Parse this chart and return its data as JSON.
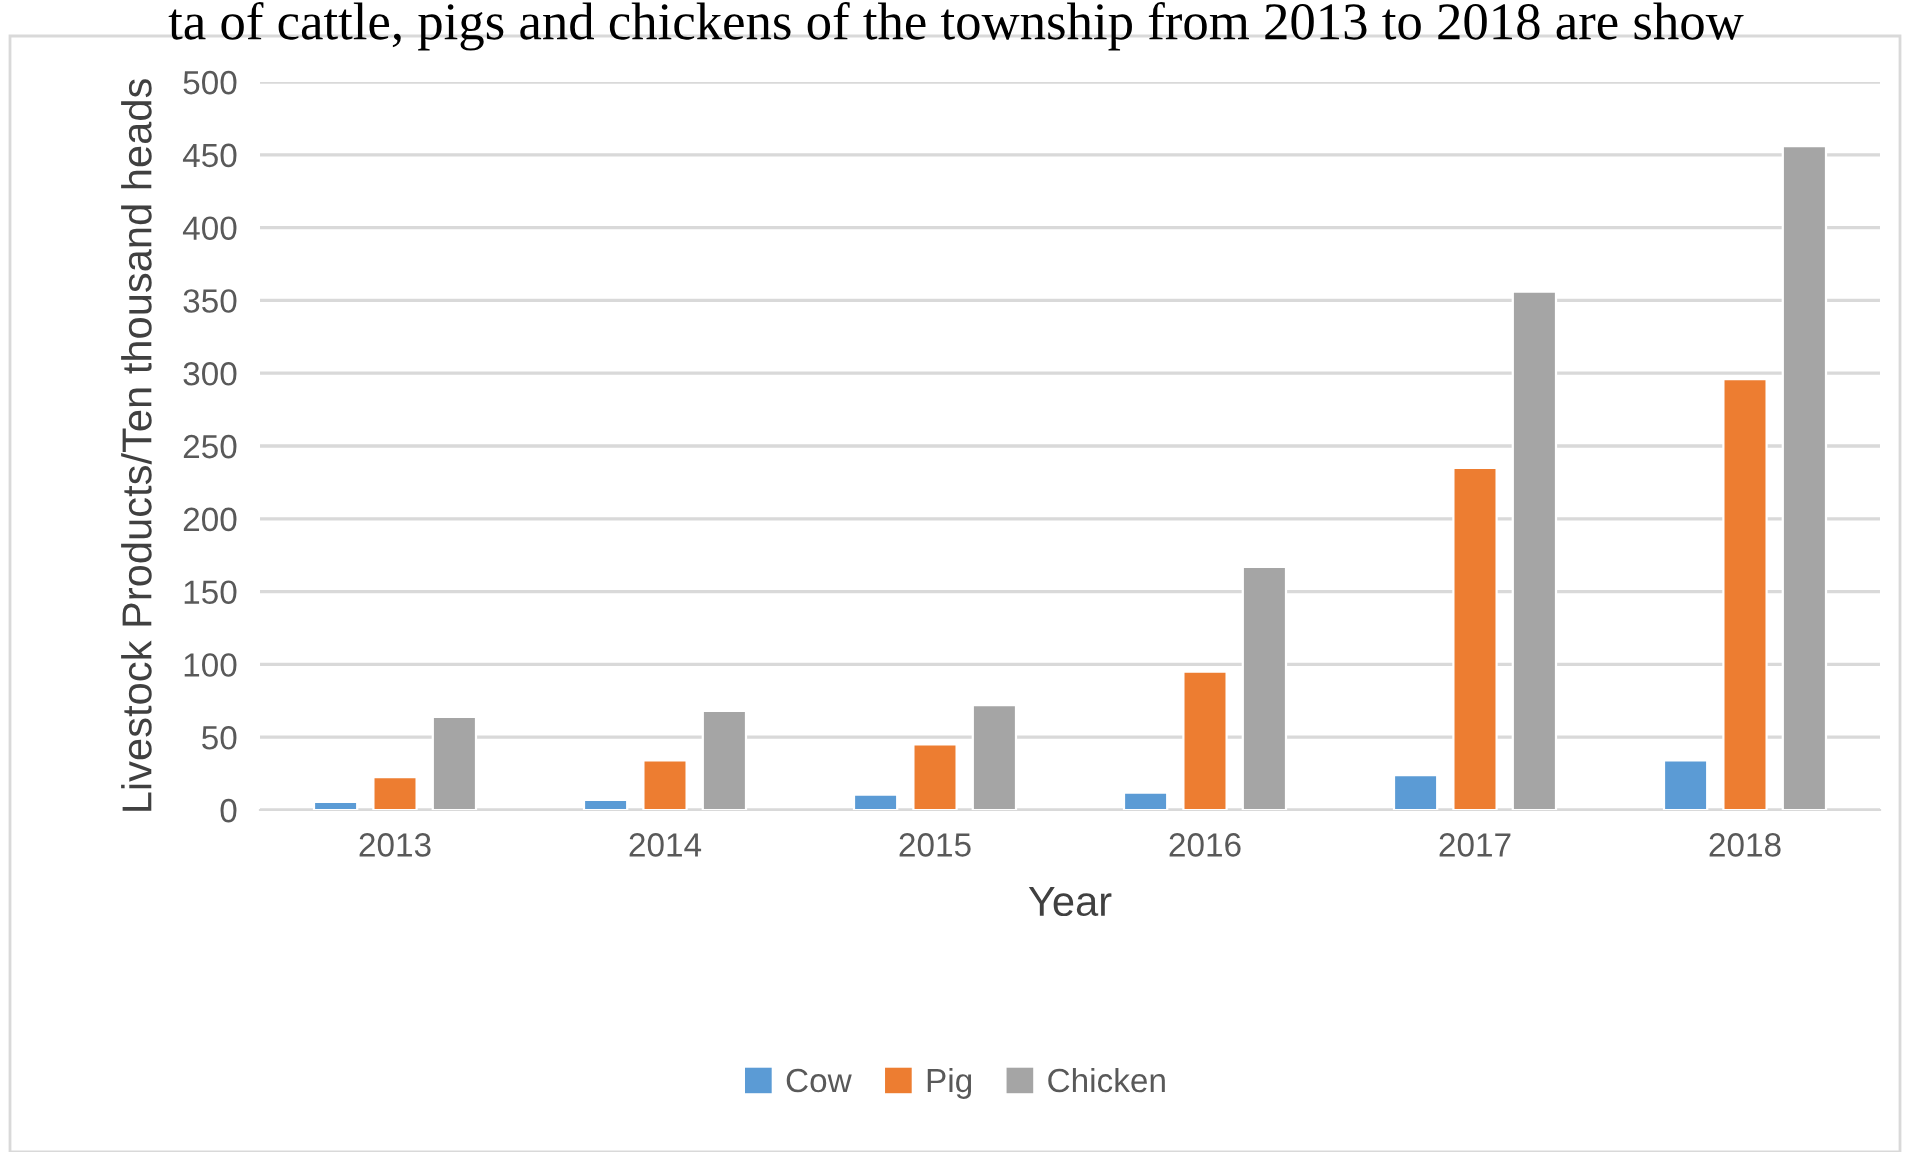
{
  "chart_data": {
    "type": "bar",
    "xlabel": "Year",
    "ylabel": "Livestock Products/Ten thousand heads",
    "categories": [
      "2013",
      "2014",
      "2015",
      "2016",
      "2017",
      "2018"
    ],
    "series": [
      {
        "name": "Cow",
        "color": "#5b9bd5",
        "values": [
          5.5,
          7,
          10.5,
          12,
          24,
          34
        ]
      },
      {
        "name": "Pig",
        "color": "#ed7d31",
        "values": [
          22.5,
          34,
          45,
          95,
          235,
          296
        ]
      },
      {
        "name": "Chicken",
        "color": "#a5a5a5",
        "values": [
          64,
          68,
          72,
          167,
          356,
          456
        ]
      }
    ],
    "ylim": [
      0,
      500
    ],
    "yticks": [
      0,
      50,
      100,
      150,
      200,
      250,
      300,
      350,
      400,
      450,
      500
    ],
    "grid": "y",
    "legend": "bottom",
    "annotations": [
      "ta of cattle, pigs and chickens of the township from 2013 to 2018 are show"
    ]
  }
}
